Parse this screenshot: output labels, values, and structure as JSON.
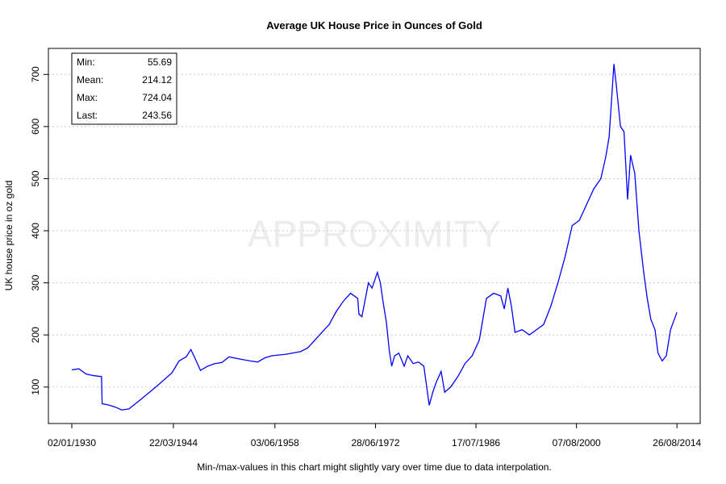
{
  "chart_data": {
    "type": "line",
    "title": "Average UK House Price in Ounces of Gold",
    "y_label": "UK house price in oz gold",
    "watermark": "APPROXIMITY",
    "footnote": "Min-/max-values in this chart might slightly vary over time due to data interpolation.",
    "stats": [
      {
        "label": "Min:",
        "value": 55.69
      },
      {
        "label": "Mean:",
        "value": 214.12
      },
      {
        "label": "Max:",
        "value": 724.04
      },
      {
        "label": "Last:",
        "value": 243.56
      }
    ],
    "x": [
      "1930-01-02",
      "1931-01-01",
      "1932-01-01",
      "1933-01-01",
      "1934-03-01",
      "1934-04-01",
      "1935-01-01",
      "1936-01-01",
      "1937-01-01",
      "1938-01-01",
      "1940-01-01",
      "1942-01-01",
      "1944-01-01",
      "1945-01-01",
      "1946-01-01",
      "1946-09-01",
      "1947-04-01",
      "1948-01-01",
      "1949-01-01",
      "1950-01-01",
      "1951-01-01",
      "1952-01-01",
      "1953-01-01",
      "1955-01-01",
      "1956-01-01",
      "1957-01-01",
      "1958-01-01",
      "1960-01-01",
      "1962-01-01",
      "1963-01-01",
      "1964-01-01",
      "1965-01-01",
      "1966-01-01",
      "1967-01-01",
      "1968-01-01",
      "1969-01-01",
      "1970-01-01",
      "1970-03-01",
      "1970-08-01",
      "1971-01-01",
      "1971-07-01",
      "1972-01-01",
      "1972-10-01",
      "1973-03-01",
      "1973-08-01",
      "1974-01-01",
      "1974-06-01",
      "1974-10-01",
      "1975-03-01",
      "1975-10-01",
      "1976-07-01",
      "1977-01-01",
      "1977-10-01",
      "1978-07-01",
      "1979-04-01",
      "1980-01-01",
      "1980-07-01",
      "1981-01-01",
      "1981-09-01",
      "1982-03-01",
      "1983-01-01",
      "1984-01-01",
      "1985-01-01",
      "1986-01-01",
      "1987-01-01",
      "1988-01-01",
      "1989-01-01",
      "1990-01-01",
      "1990-07-01",
      "1991-01-01",
      "1991-07-01",
      "1992-01-01",
      "1993-01-01",
      "1994-01-01",
      "1995-01-01",
      "1996-01-01",
      "1997-01-01",
      "1998-01-01",
      "1999-01-01",
      "2000-01-01",
      "2001-01-01",
      "2002-01-01",
      "2003-01-01",
      "2004-01-01",
      "2004-09-01",
      "2005-03-01",
      "2005-11-01",
      "2006-03-01",
      "2006-10-01",
      "2007-04-01",
      "2007-10-01",
      "2008-03-01",
      "2008-10-01",
      "2009-05-01",
      "2010-01-01",
      "2010-07-01",
      "2011-01-01",
      "2011-08-01",
      "2012-01-01",
      "2012-08-01",
      "2013-03-01",
      "2013-10-01",
      "2014-08-26"
    ],
    "series": [
      {
        "name": "UK house price in oz gold",
        "color": "#0000ff",
        "values": [
          133,
          135,
          125,
          122,
          120,
          68,
          66,
          62,
          56,
          58,
          80,
          103,
          127,
          150,
          158,
          172,
          155,
          132,
          140,
          145,
          147,
          158,
          155,
          150,
          148,
          156,
          160,
          163,
          168,
          175,
          190,
          205,
          220,
          245,
          265,
          280,
          270,
          240,
          235,
          265,
          300,
          290,
          320,
          300,
          260,
          225,
          170,
          140,
          160,
          165,
          140,
          160,
          145,
          148,
          140,
          65,
          90,
          110,
          130,
          90,
          100,
          120,
          145,
          160,
          190,
          270,
          280,
          275,
          250,
          290,
          255,
          205,
          210,
          200,
          210,
          220,
          255,
          300,
          350,
          410,
          420,
          450,
          480,
          500,
          540,
          580,
          720,
          680,
          600,
          590,
          460,
          545,
          510,
          400,
          320,
          270,
          230,
          210,
          165,
          150,
          160,
          210,
          243.56
        ]
      }
    ],
    "xlim": [
      "1926-09-25",
      "2017-11-25"
    ],
    "xticks": [
      {
        "value": "1930-01-02",
        "label": "02/01/1930"
      },
      {
        "value": "1944-03-22",
        "label": "22/03/1944"
      },
      {
        "value": "1958-06-03",
        "label": "03/06/1958"
      },
      {
        "value": "1972-06-28",
        "label": "28/06/1972"
      },
      {
        "value": "1986-07-17",
        "label": "17/07/1986"
      },
      {
        "value": "2000-08-07",
        "label": "07/08/2000"
      },
      {
        "value": "2014-08-26",
        "label": "26/08/2014"
      }
    ],
    "ylim": [
      30,
      750
    ],
    "yticks": [
      100,
      200,
      300,
      400,
      500,
      600,
      700
    ],
    "grid": true
  }
}
